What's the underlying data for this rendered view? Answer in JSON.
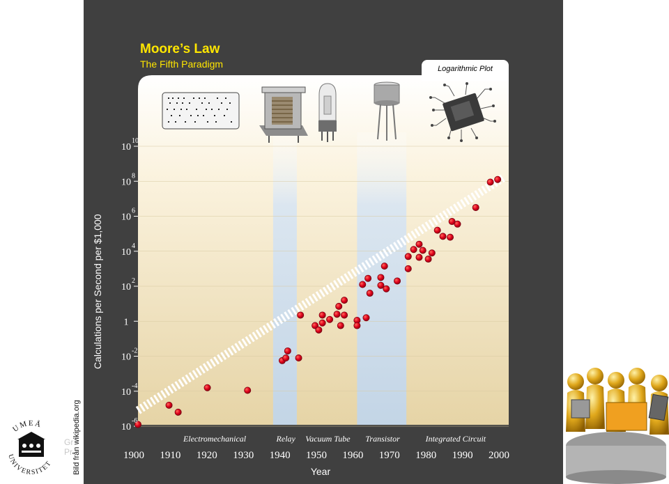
{
  "slide": {
    "title": "Moore’s Law",
    "subtitle": "The Fifth Paradigm",
    "scale_label": "Logarithmic Plot",
    "image_credit": "Bild från wikipedia.org",
    "logo_text": "UMEÅ UNIVERSITET",
    "ghost_text": [
      "Gr",
      "Pr"
    ]
  },
  "colors": {
    "slide_bg": "#404040",
    "title": "#ffe600",
    "point_fill": "#d9001b",
    "panel_gradient_top": "#ffffff",
    "panel_gradient_bottom": "#e8d6a8",
    "band": "#c9d9ea"
  },
  "icons": [
    "punch-card-icon",
    "relay-icon",
    "vacuum-tube-icon",
    "transistor-icon",
    "integrated-circuit-icon",
    "umea-university-logo",
    "gold-people-computers-icon"
  ],
  "chart_data": {
    "type": "scatter",
    "title": "Moore’s Law",
    "subtitle": "The Fifth Paradigm",
    "xlabel": "Year",
    "ylabel": "Calculations per Second per $1,000",
    "xlim": [
      1900,
      2000
    ],
    "ylim_log10": [
      -6,
      10
    ],
    "x_ticks": [
      "1900",
      "1910",
      "1920",
      "1930",
      "1940",
      "1950",
      "1960",
      "1970",
      "1980",
      "1990",
      "2000"
    ],
    "x_tick_values": [
      1900,
      1910,
      1920,
      1930,
      1940,
      1950,
      1960,
      1970,
      1980,
      1990,
      2000
    ],
    "y_ticks": [
      {
        "exp": 10,
        "base": "10",
        "sup": "10"
      },
      {
        "exp": 8,
        "base": "10",
        "sup": "8"
      },
      {
        "exp": 6,
        "base": "10",
        "sup": "6"
      },
      {
        "exp": 4,
        "base": "10",
        "sup": "4"
      },
      {
        "exp": 2,
        "base": "10",
        "sup": "2"
      },
      {
        "exp": 0,
        "base": "1",
        "sup": ""
      },
      {
        "exp": -2,
        "base": "10",
        "sup": "-2"
      },
      {
        "exp": -4,
        "base": "10",
        "sup": "-4"
      },
      {
        "exp": -6,
        "base": "10",
        "sup": "-6"
      }
    ],
    "paradigms": [
      {
        "name": "Electromechanical",
        "center": 1921
      },
      {
        "name": "Relay",
        "center": 1940.5
      },
      {
        "name": "Vacuum Tube",
        "center": 1952
      },
      {
        "name": "Transistor",
        "center": 1967
      },
      {
        "name": "Integrated Circuit",
        "center": 1987
      }
    ],
    "bands": [
      [
        1937,
        1943.5
      ],
      [
        1960,
        1973.5
      ]
    ],
    "trend": {
      "from": [
        1900,
        -5.1
      ],
      "to": [
        2000,
        8.2
      ]
    },
    "points": [
      {
        "year": 1900,
        "log10": -5.9
      },
      {
        "year": 1908.5,
        "log10": -4.8
      },
      {
        "year": 1911,
        "log10": -5.2
      },
      {
        "year": 1919,
        "log10": -3.8
      },
      {
        "year": 1930,
        "log10": -3.95
      },
      {
        "year": 1939.5,
        "log10": -2.25
      },
      {
        "year": 1940.5,
        "log10": -2.1
      },
      {
        "year": 1941,
        "log10": -1.7
      },
      {
        "year": 1944,
        "log10": -2.1
      },
      {
        "year": 1944.5,
        "log10": 0.35
      },
      {
        "year": 1948.5,
        "log10": -0.25
      },
      {
        "year": 1949.5,
        "log10": -0.5
      },
      {
        "year": 1950.5,
        "log10": -0.1
      },
      {
        "year": 1950.5,
        "log10": 0.35
      },
      {
        "year": 1952.5,
        "log10": 0.1
      },
      {
        "year": 1954.5,
        "log10": 0.4
      },
      {
        "year": 1955,
        "log10": 0.85
      },
      {
        "year": 1955.5,
        "log10": -0.25
      },
      {
        "year": 1956.5,
        "log10": 1.2
      },
      {
        "year": 1956.5,
        "log10": 0.35
      },
      {
        "year": 1960,
        "log10": 0.05
      },
      {
        "year": 1960,
        "log10": -0.25
      },
      {
        "year": 1961.5,
        "log10": 2.1
      },
      {
        "year": 1962.5,
        "log10": 0.2
      },
      {
        "year": 1963,
        "log10": 2.45
      },
      {
        "year": 1963.5,
        "log10": 1.6
      },
      {
        "year": 1966.5,
        "log10": 2.5
      },
      {
        "year": 1966.5,
        "log10": 2.05
      },
      {
        "year": 1967.5,
        "log10": 3.15
      },
      {
        "year": 1968,
        "log10": 1.85
      },
      {
        "year": 1971,
        "log10": 2.3
      },
      {
        "year": 1974,
        "log10": 3.0
      },
      {
        "year": 1974,
        "log10": 3.7
      },
      {
        "year": 1975.5,
        "log10": 4.1
      },
      {
        "year": 1977,
        "log10": 3.65
      },
      {
        "year": 1977,
        "log10": 4.4
      },
      {
        "year": 1978,
        "log10": 4.05
      },
      {
        "year": 1979.5,
        "log10": 3.55
      },
      {
        "year": 1980.5,
        "log10": 3.9
      },
      {
        "year": 1982,
        "log10": 5.2
      },
      {
        "year": 1983.5,
        "log10": 4.85
      },
      {
        "year": 1985.5,
        "log10": 4.8
      },
      {
        "year": 1986,
        "log10": 5.7
      },
      {
        "year": 1987.5,
        "log10": 5.55
      },
      {
        "year": 1992.5,
        "log10": 6.5
      },
      {
        "year": 1996.5,
        "log10": 7.95
      },
      {
        "year": 1998.5,
        "log10": 8.1
      }
    ]
  }
}
